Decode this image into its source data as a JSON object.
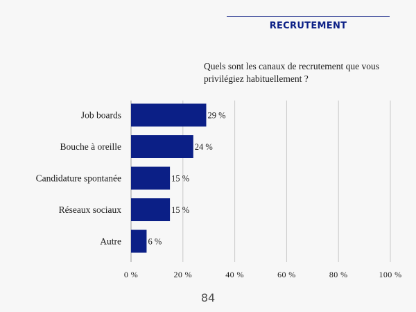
{
  "header": {
    "section_title": "RECRUTEMENT"
  },
  "question": "Quels sont les canaux de recrutement que vous privilégiez habituellement ?",
  "page_number": "84",
  "colors": {
    "bar": "#0b1f86",
    "accent": "#1a2a8a",
    "grid": "#c8c8c8"
  },
  "chart_data": {
    "type": "bar",
    "orientation": "horizontal",
    "title": "Quels sont les canaux de recrutement que vous privilégiez habituellement ?",
    "categories": [
      "Job boards",
      "Bouche à oreille",
      "Candidature spontanée",
      "Réseaux sociaux",
      "Autre"
    ],
    "values": [
      29,
      24,
      15,
      15,
      6
    ],
    "value_labels": [
      "29 %",
      "24 %",
      "15 %",
      "15 %",
      "6 %"
    ],
    "xlim": [
      0,
      100
    ],
    "xticks": [
      0,
      20,
      40,
      60,
      80,
      100
    ],
    "xtick_labels": [
      "0 %",
      "20 %",
      "40 %",
      "60 %",
      "80 %",
      "100 %"
    ],
    "grid": "vertical"
  }
}
